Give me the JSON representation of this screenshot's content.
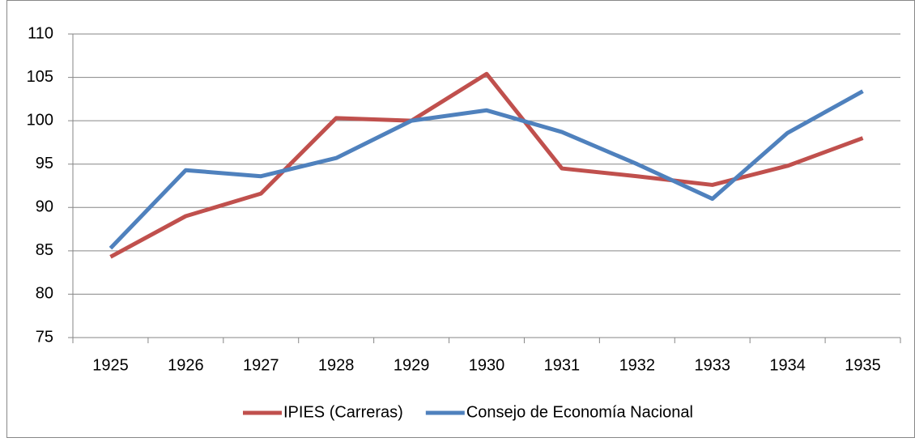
{
  "chart_data": {
    "type": "line",
    "categories": [
      "1925",
      "1926",
      "1927",
      "1928",
      "1929",
      "1930",
      "1931",
      "1932",
      "1933",
      "1934",
      "1935"
    ],
    "series": [
      {
        "name": "IPIES (Carreras)",
        "color": "#c0504d",
        "values": [
          84.3,
          89.0,
          91.6,
          100.3,
          100.0,
          105.4,
          94.5,
          93.6,
          92.6,
          94.8,
          98.0
        ]
      },
      {
        "name": "Consejo de Economía Nacional",
        "color": "#4f81bd",
        "values": [
          85.3,
          94.3,
          93.6,
          95.7,
          100.0,
          101.2,
          98.7,
          95.0,
          91.0,
          98.6,
          103.4
        ]
      }
    ],
    "ylim": [
      75,
      110
    ],
    "yticks": [
      75,
      80,
      85,
      90,
      95,
      100,
      105,
      110
    ],
    "grid": true
  }
}
